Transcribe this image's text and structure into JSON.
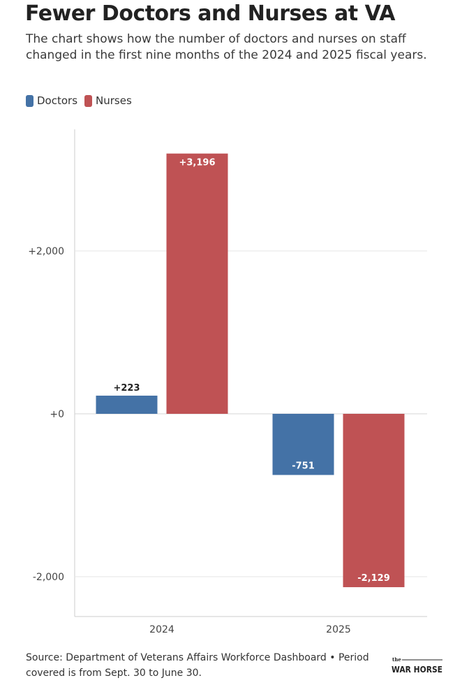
{
  "title": "Fewer Doctors and Nurses at VA",
  "subtitle": "The chart shows how the number of doctors and nurses on staff changed in the first nine months of the 2024 and 2025 fiscal years.",
  "source": "Source: Department of Veterans Affairs Workforce Dashboard • Period covered is from Sept. 30 to June 30.",
  "logo": {
    "small": "the",
    "main": "WAR HORSE"
  },
  "colors": {
    "doctors": "#4472a6",
    "nurses": "#bf5254",
    "grid": "#e6e6e6",
    "axis": "#cccccc"
  },
  "chart_data": {
    "type": "bar",
    "title": "Fewer Doctors and Nurses at VA",
    "categories": [
      "2024",
      "2025"
    ],
    "series": [
      {
        "name": "Doctors",
        "values": [
          223,
          -751
        ],
        "labels": [
          "+223",
          "-751"
        ]
      },
      {
        "name": "Nurses",
        "values": [
          3196,
          -2129
        ],
        "labels": [
          "+3,196",
          "-2,129"
        ]
      }
    ],
    "yticks": [
      -2000,
      0,
      2000
    ],
    "ytick_labels": [
      "-2,000",
      "+0",
      "+2,000"
    ],
    "ylim": [
      -2500,
      3500
    ],
    "xlabel": "",
    "ylabel": "",
    "grid": true,
    "legend": "top-left"
  }
}
